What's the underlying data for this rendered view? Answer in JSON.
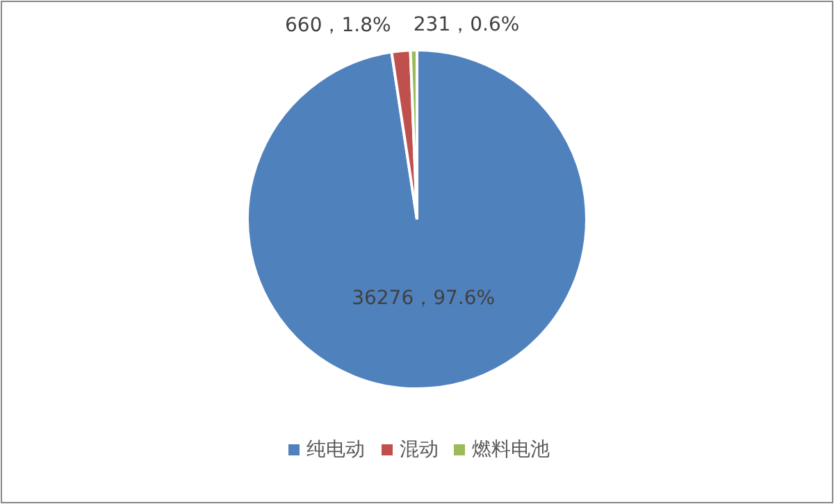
{
  "chart_data": {
    "type": "pie",
    "categories": [
      "纯电动",
      "混动",
      "燃料电池"
    ],
    "values": [
      36276,
      660,
      231
    ],
    "colors": [
      "#4f81bd",
      "#c0504d",
      "#9bbb59"
    ],
    "value_labels": [
      "36276，97.6%",
      "660，1.8%",
      "231，0.6%"
    ],
    "legend": "bottom"
  }
}
